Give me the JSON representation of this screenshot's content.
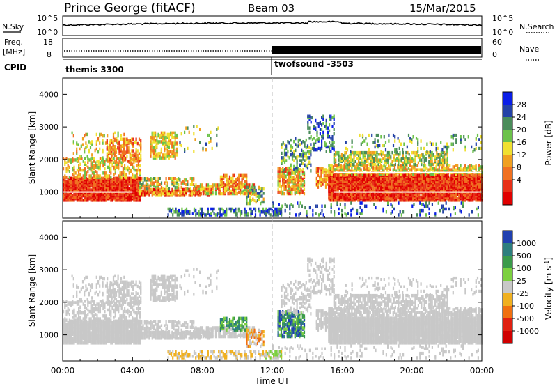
{
  "header": {
    "station": "Prince George (fitACF)",
    "beam": "Beam 03",
    "date": "15/Mar/2015"
  },
  "top_panels": {
    "nsky_label": "N.Sky",
    "nsky_ticks": [
      "10^5",
      "10^0"
    ],
    "nsearch_label": "N.Search",
    "nsearch_ticks": [
      "10^5",
      "10^0"
    ],
    "freq_label_1": "Freq.",
    "freq_label_2": "[MHz]",
    "freq_ticks": [
      "18",
      "8"
    ],
    "nave_label": "Nave",
    "nave_ticks": [
      "60",
      "0"
    ],
    "cpid_label": "CPID",
    "cpid_1": "themis 3300",
    "cpid_2": "twofsound -3503"
  },
  "chart_data": [
    {
      "type": "heatmap",
      "ylabel": "Slant Range [km]",
      "xlabel": "",
      "ylim": [
        200,
        4500
      ],
      "y_ticks": [
        "4000",
        "3000",
        "2000",
        "1000"
      ],
      "x_ticks": [
        "00:00",
        "04:00",
        "08:00",
        "12:00",
        "16:00",
        "20:00",
        "00:00"
      ],
      "colorbar_label": "Power [dB]",
      "colorbar_ticks": [
        "28",
        "24",
        "20",
        "16",
        "12",
        "8",
        "4"
      ],
      "colors": [
        "#0a1ee8",
        "#2442a6",
        "#4a8c5a",
        "#6cc24a",
        "#f0e030",
        "#f0a020",
        "#f07020",
        "#e83018",
        "#e00000"
      ]
    },
    {
      "type": "heatmap",
      "ylabel": "Slant Range [km]",
      "xlabel": "Time UT",
      "ylim": [
        200,
        4500
      ],
      "y_ticks": [
        "4000",
        "3000",
        "2000",
        "1000"
      ],
      "x_ticks": [
        "00:00",
        "04:00",
        "08:00",
        "12:00",
        "16:00",
        "20:00",
        "00:00"
      ],
      "colorbar_label": "Velocity [m s^-1]",
      "colorbar_ticks": [
        "1000",
        "500",
        "100",
        "25",
        "-25",
        "-100",
        "-500",
        "-1000"
      ],
      "colors": [
        "#2040b0",
        "#2d7e7e",
        "#3a9a4a",
        "#7cd040",
        "#c8c8c8",
        "#f0b020",
        "#f07010",
        "#e02010",
        "#d00000"
      ]
    }
  ]
}
